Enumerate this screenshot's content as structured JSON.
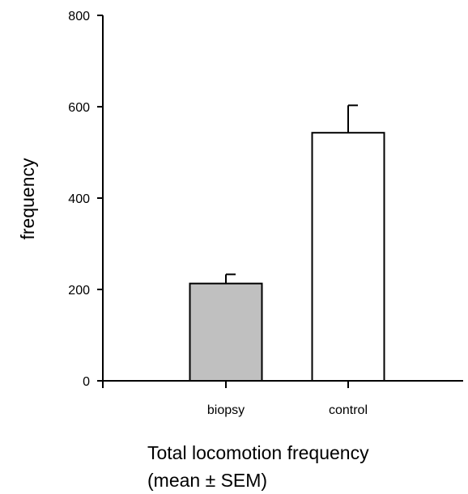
{
  "chart_data": {
    "type": "bar",
    "categories": [
      "biopsy",
      "control"
    ],
    "values": [
      213,
      543
    ],
    "errors": [
      20,
      60
    ],
    "colors": [
      "#c0c0c0",
      "#ffffff"
    ],
    "ylabel": "frequency",
    "xlabel": "",
    "ylim": [
      0,
      800
    ],
    "yticks": [
      0,
      200,
      400,
      600,
      800
    ],
    "caption": [
      "Total locomotion frequency",
      "(mean ± SEM)"
    ],
    "grid": false,
    "legend": "none"
  }
}
